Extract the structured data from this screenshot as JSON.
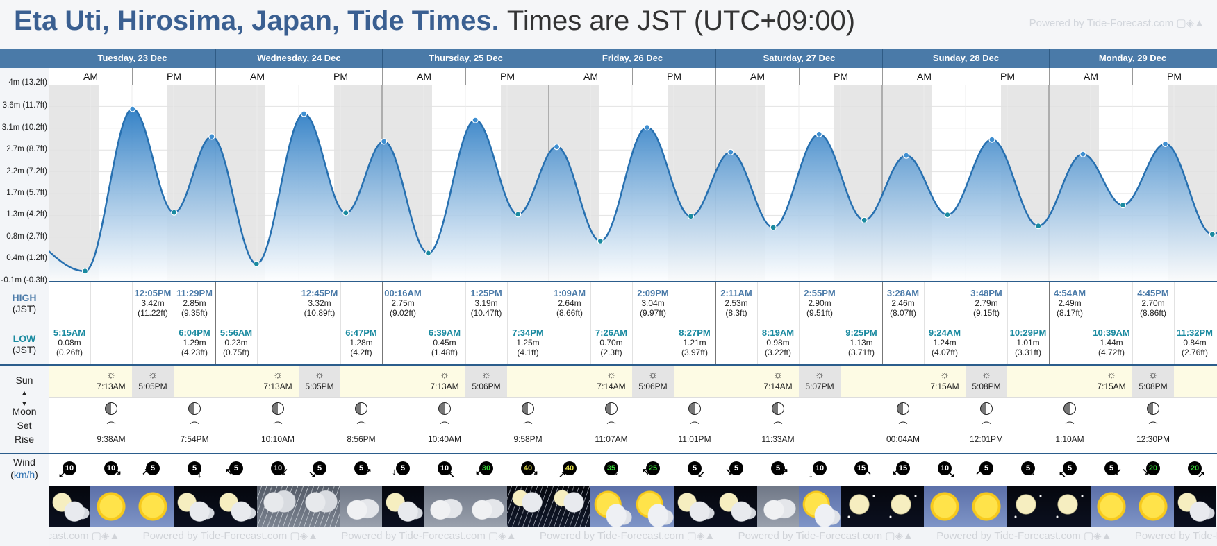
{
  "title": {
    "main": "Eta Uti, Hirosima, Japan, Tide Times.",
    "sub": "Times are JST (UTC+09:00)"
  },
  "powered_by": "Powered by Tide-Forecast.com",
  "powered_by_bottom": "Powered by Tide-Forecast.com",
  "days": [
    {
      "label": "Tuesday, 23 Dec"
    },
    {
      "label": "Wednesday, 24 Dec"
    },
    {
      "label": "Thursday, 25 Dec"
    },
    {
      "label": "Friday, 26 Dec"
    },
    {
      "label": "Saturday, 27 Dec"
    },
    {
      "label": "Sunday, 28 Dec"
    },
    {
      "label": "Monday, 29 Dec"
    }
  ],
  "ampm": {
    "am": "AM",
    "pm": "PM"
  },
  "y_axis_labels": [
    "4m (13.2ft)",
    "3.6m (11.7ft)",
    "3.1m (10.2ft)",
    "2.7m (8.7ft)",
    "2.2m (7.2ft)",
    "1.7m (5.7ft)",
    "1.3m (4.2ft)",
    "0.8m (2.7ft)",
    "0.4m (1.2ft)",
    "-0.1m (-0.3ft)"
  ],
  "row_labels": {
    "high": "HIGH",
    "high_tz": "(JST)",
    "low": "LOW",
    "low_tz": "(JST)",
    "sun": "Sun",
    "moon": "Moon",
    "moon_set": "Set",
    "moon_rise": "Rise",
    "wind": "Wind",
    "wind_unit": "km/h"
  },
  "highs": [
    {
      "time": "12:05PM",
      "m": "3.42m",
      "ft": "(11.22ft)",
      "hour": 12.08
    },
    {
      "time": "11:29PM",
      "m": "2.85m",
      "ft": "(9.35ft)",
      "hour": 23.48
    },
    {
      "time": "12:45PM",
      "m": "3.32m",
      "ft": "(10.89ft)",
      "hour": 36.75
    },
    {
      "time": "00:16AM",
      "m": "2.75m",
      "ft": "(9.02ft)",
      "hour": 48.27
    },
    {
      "time": "1:25PM",
      "m": "3.19m",
      "ft": "(10.47ft)",
      "hour": 61.42
    },
    {
      "time": "1:09AM",
      "m": "2.64m",
      "ft": "(8.66ft)",
      "hour": 73.15
    },
    {
      "time": "2:09PM",
      "m": "3.04m",
      "ft": "(9.97ft)",
      "hour": 86.15
    },
    {
      "time": "2:11AM",
      "m": "2.53m",
      "ft": "(8.3ft)",
      "hour": 98.18
    },
    {
      "time": "2:55PM",
      "m": "2.90m",
      "ft": "(9.51ft)",
      "hour": 110.92
    },
    {
      "time": "3:28AM",
      "m": "2.46m",
      "ft": "(8.07ft)",
      "hour": 123.47
    },
    {
      "time": "3:48PM",
      "m": "2.79m",
      "ft": "(9.15ft)",
      "hour": 135.8
    },
    {
      "time": "4:54AM",
      "m": "2.49m",
      "ft": "(8.17ft)",
      "hour": 148.9
    },
    {
      "time": "4:45PM",
      "m": "2.70m",
      "ft": "(8.86ft)",
      "hour": 160.75
    }
  ],
  "lows": [
    {
      "time": "5:15AM",
      "m": "0.08m",
      "ft": "(0.26ft)",
      "hour": 5.25
    },
    {
      "time": "6:04PM",
      "m": "1.29m",
      "ft": "(4.23ft)",
      "hour": 18.07
    },
    {
      "time": "5:56AM",
      "m": "0.23m",
      "ft": "(0.75ft)",
      "hour": 29.93
    },
    {
      "time": "6:47PM",
      "m": "1.28m",
      "ft": "(4.2ft)",
      "hour": 42.78
    },
    {
      "time": "6:39AM",
      "m": "0.45m",
      "ft": "(1.48ft)",
      "hour": 54.65
    },
    {
      "time": "7:34PM",
      "m": "1.25m",
      "ft": "(4.1ft)",
      "hour": 67.57
    },
    {
      "time": "7:26AM",
      "m": "0.70m",
      "ft": "(2.3ft)",
      "hour": 79.43
    },
    {
      "time": "8:27PM",
      "m": "1.21m",
      "ft": "(3.97ft)",
      "hour": 92.45
    },
    {
      "time": "8:19AM",
      "m": "0.98m",
      "ft": "(3.22ft)",
      "hour": 104.32
    },
    {
      "time": "9:25PM",
      "m": "1.13m",
      "ft": "(3.71ft)",
      "hour": 117.42
    },
    {
      "time": "9:24AM",
      "m": "1.24m",
      "ft": "(4.07ft)",
      "hour": 129.4
    },
    {
      "time": "10:29PM",
      "m": "1.01m",
      "ft": "(3.31ft)",
      "hour": 142.48
    },
    {
      "time": "10:39AM",
      "m": "1.44m",
      "ft": "(4.72ft)",
      "hour": 154.65
    },
    {
      "time": "11:32PM",
      "m": "0.84m",
      "ft": "(2.76ft)",
      "hour": 167.53
    }
  ],
  "sun": [
    {
      "rise": "7:13AM",
      "set": "5:05PM"
    },
    {
      "rise": "7:13AM",
      "set": "5:05PM"
    },
    {
      "rise": "7:13AM",
      "set": "5:06PM"
    },
    {
      "rise": "7:14AM",
      "set": "5:06PM"
    },
    {
      "rise": "7:14AM",
      "set": "5:07PM"
    },
    {
      "rise": "7:15AM",
      "set": "5:08PM"
    },
    {
      "rise": "7:15AM",
      "set": "5:08PM"
    }
  ],
  "moon": [
    {
      "time": "9:38AM",
      "slot": 1
    },
    {
      "time": "7:54PM",
      "slot": 3
    },
    {
      "time": "10:10AM",
      "slot": 5
    },
    {
      "time": "8:56PM",
      "slot": 7
    },
    {
      "time": "10:40AM",
      "slot": 9
    },
    {
      "time": "9:58PM",
      "slot": 11
    },
    {
      "time": "11:07AM",
      "slot": 13
    },
    {
      "time": "11:01PM",
      "slot": 15
    },
    {
      "time": "11:33AM",
      "slot": 17
    },
    {
      "time": "00:04AM",
      "slot": 20
    },
    {
      "time": "12:01PM",
      "slot": 22
    },
    {
      "time": "1:10AM",
      "slot": 24
    },
    {
      "time": "12:30PM",
      "slot": 26
    }
  ],
  "wind": [
    "10",
    "10",
    "5",
    "5",
    "5",
    "10",
    "5",
    "5",
    "5",
    "10",
    "30",
    "40",
    "40",
    "35",
    "25",
    "5",
    "5",
    "5",
    "10",
    "15",
    "15",
    "10",
    "5",
    "5",
    "5",
    "5",
    "20",
    "20"
  ],
  "wind_colors": {
    "normal": "#ffffff",
    "green": "#35d235",
    "yellow": "#e6e24a"
  },
  "weather": [
    "night-cloud",
    "sun",
    "sun",
    "night-cloud",
    "night-cloud",
    "rain",
    "rain",
    "cloud",
    "night-cloud",
    "cloud",
    "cloud",
    "night-rain",
    "night-rain",
    "sun-cloud",
    "sun-cloud",
    "night-cloud",
    "night-cloud",
    "cloud",
    "sun-cloud",
    "night-clear",
    "night-clear",
    "sun",
    "sun",
    "night-clear",
    "night-clear",
    "sun",
    "sun",
    "night-cloud"
  ]
}
